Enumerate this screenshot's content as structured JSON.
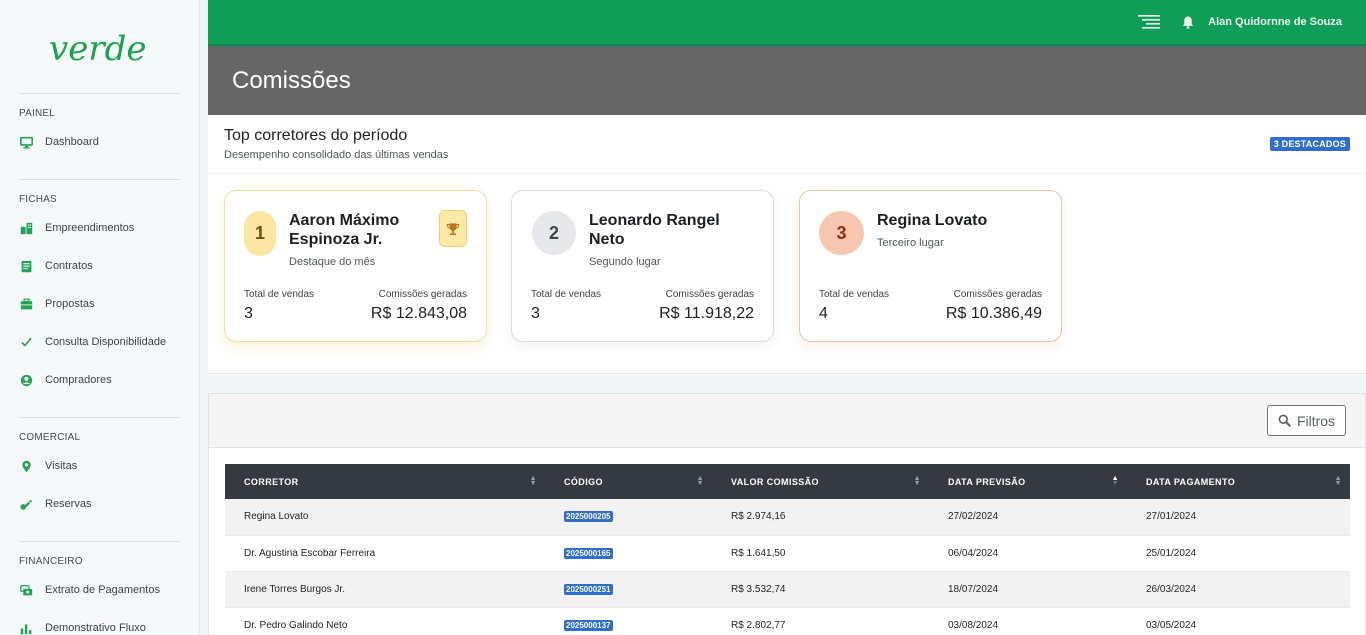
{
  "brand": {
    "logo_text": "verde",
    "accent": "#0f9d58"
  },
  "topbar": {
    "user": "Alan Quidornne de Souza"
  },
  "page": {
    "title": "Comissões"
  },
  "sidebar": {
    "sections": [
      {
        "title": "PAINEL",
        "items": [
          {
            "label": "Dashboard",
            "icon": "monitor-icon"
          }
        ]
      },
      {
        "title": "FICHAS",
        "items": [
          {
            "label": "Empreendimentos",
            "icon": "building-icon"
          },
          {
            "label": "Contratos",
            "icon": "document-icon"
          },
          {
            "label": "Propostas",
            "icon": "briefcase-icon"
          },
          {
            "label": "Consulta Disponibilidade",
            "icon": "check-icon"
          },
          {
            "label": "Compradores",
            "icon": "user-circle-icon"
          }
        ]
      },
      {
        "title": "COMERCIAL",
        "items": [
          {
            "label": "Visitas",
            "icon": "map-pin-icon"
          },
          {
            "label": "Reservas",
            "icon": "key-icon"
          }
        ]
      },
      {
        "title": "FINANCEIRO",
        "items": [
          {
            "label": "Extrato de Pagamentos",
            "icon": "money-icon"
          },
          {
            "label": "Demonstrativo Fluxo",
            "icon": "bar-chart-icon"
          }
        ]
      }
    ]
  },
  "top": {
    "title": "Top corretores do período",
    "subtitle": "Desempenho consolidado das últimas vendas",
    "badge": "3 DESTACADOS",
    "label_sales": "Total de vendas",
    "label_commission": "Comissões geradas",
    "cards": [
      {
        "rank": "1",
        "name": "Aaron Máximo Espinoza Jr.",
        "subtitle": "Destaque do mês",
        "sales": "3",
        "commission": "R$ 12.843,08"
      },
      {
        "rank": "2",
        "name": "Leonardo Rangel Neto",
        "subtitle": "Segundo lugar",
        "sales": "3",
        "commission": "R$ 11.918,22"
      },
      {
        "rank": "3",
        "name": "Regina Lovato",
        "subtitle": "Terceiro lugar",
        "sales": "4",
        "commission": "R$ 10.386,49"
      }
    ]
  },
  "table": {
    "filter_label": "Filtros",
    "headers": [
      "CORRETOR",
      "CÓDIGO",
      "VALOR COMISSÃO",
      "DATA PREVISÃO",
      "DATA PAGAMENTO"
    ],
    "rows": [
      [
        "Regina Lovato",
        "2025000205",
        "R$ 2.974,16",
        "27/02/2024",
        "27/01/2024"
      ],
      [
        "Dr. Agustina Escobar Ferreira",
        "2025000165",
        "R$ 1.641,50",
        "06/04/2024",
        "25/01/2024"
      ],
      [
        "Irene Torres Burgos Jr.",
        "2025000251",
        "R$ 3.532,74",
        "18/07/2024",
        "26/03/2024"
      ],
      [
        "Dr. Pedro Galindo Neto",
        "2025000137",
        "R$ 2.802,77",
        "03/08/2024",
        "03/05/2024"
      ]
    ]
  }
}
